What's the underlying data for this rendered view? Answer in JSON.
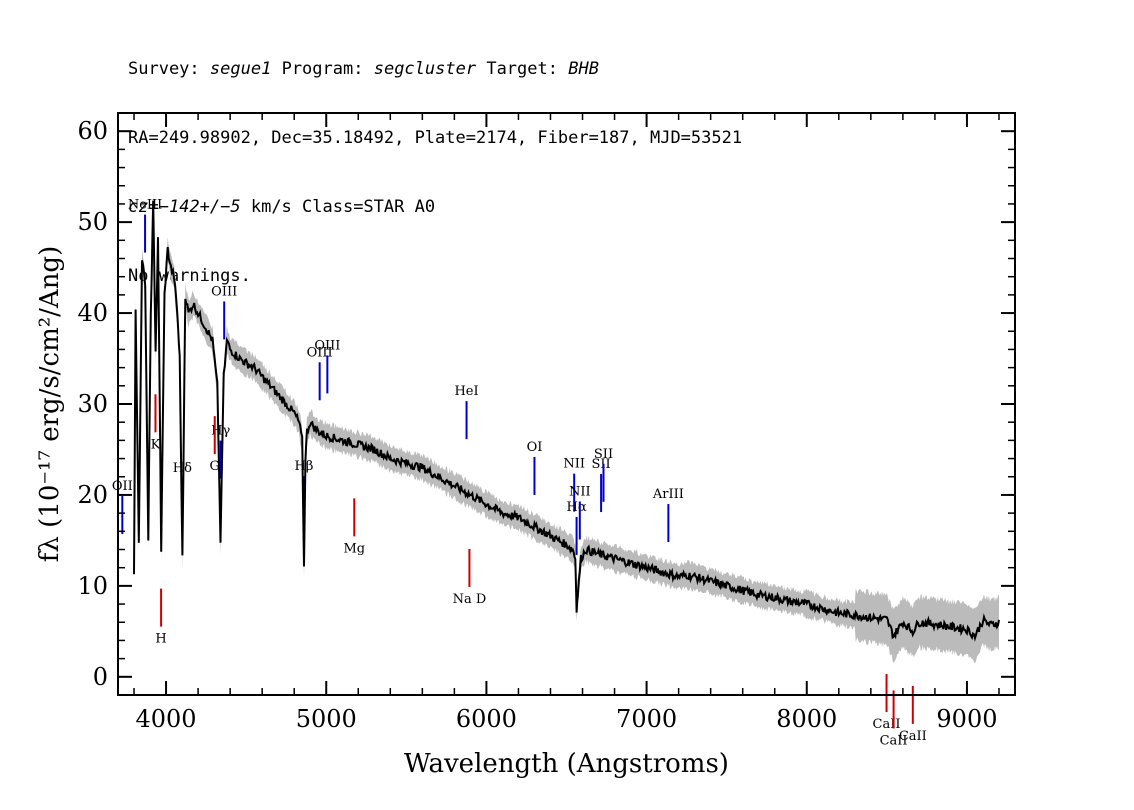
{
  "header": {
    "survey_label": "Survey:",
    "survey": "segue1",
    "program_label": "Program:",
    "program": "segcluster",
    "target_label": "Target:",
    "target": "BHB",
    "line2": "RA=249.98902, Dec=35.18492, Plate=2174, Fiber=187, MJD=53521",
    "cz_label": "cz=",
    "cz_value": "−142+/−5",
    "cz_rest": " km/s Class=STAR A0",
    "line4": "No warnings."
  },
  "chart_data": {
    "type": "line",
    "xlabel": "Wavelength (Angstroms)",
    "ylabel": "fλ (10⁻¹⁷ erg/s/cm²/Ang)",
    "xlim": [
      3700,
      9300
    ],
    "ylim": [
      -2,
      62
    ],
    "xticks": [
      4000,
      5000,
      6000,
      7000,
      8000,
      9000
    ],
    "yticks": [
      0,
      10,
      20,
      30,
      40,
      50,
      60
    ],
    "colors": {
      "flux": "#000000",
      "noise": "#bbbbbb",
      "emission": "#0000cc",
      "absorption": "#cc0000"
    },
    "series": [
      {
        "x": [
          3800,
          3810,
          3830,
          3850,
          3870,
          3889,
          3905,
          3920,
          3935,
          3950,
          3970,
          3990,
          4010,
          4030,
          4050,
          4070,
          4085,
          4102,
          4120,
          4140,
          4170,
          4200,
          4230,
          4260,
          4290,
          4320,
          4340,
          4360,
          4380,
          4400,
          4430,
          4460,
          4500,
          4550,
          4600,
          4650,
          4700,
          4750,
          4800,
          4830,
          4850,
          4861,
          4870,
          4880,
          4900,
          4920,
          4950,
          5000,
          5100,
          5200,
          5300,
          5400,
          5500,
          5600,
          5700,
          5800,
          5900,
          6000,
          6100,
          6200,
          6300,
          6400,
          6500,
          6540,
          6555,
          6563,
          6570,
          6590,
          6620,
          6700,
          6800,
          6900,
          7000,
          7100,
          7200,
          7250,
          7300,
          7400,
          7500,
          7600,
          7700,
          7800,
          7900,
          8000,
          8100,
          8200,
          8300,
          8400,
          8500,
          8542,
          8600,
          8662,
          8700,
          8800,
          8900,
          9000,
          9050,
          9100,
          9150,
          9200
        ],
        "y": [
          11,
          40,
          15,
          46,
          43,
          15,
          40,
          52,
          36,
          48,
          14,
          42,
          47,
          45,
          44,
          40,
          35,
          13,
          42,
          40,
          41,
          40,
          39,
          38,
          37,
          32,
          15,
          33,
          37,
          36,
          35.5,
          35,
          34.5,
          34,
          33,
          32,
          31,
          30,
          29,
          28,
          26,
          12,
          24,
          27,
          28,
          27.5,
          27,
          26.5,
          26,
          25.5,
          25,
          24,
          23.5,
          23,
          22,
          21,
          20,
          19,
          18,
          17.5,
          16.5,
          15.5,
          14.5,
          14,
          13,
          7.5,
          9,
          13,
          14,
          13.5,
          13,
          12.5,
          12,
          11.5,
          11,
          11.2,
          11,
          10.5,
          10,
          9.5,
          9,
          8.7,
          8.3,
          8,
          7.5,
          7,
          6.8,
          6.5,
          6.3,
          4.5,
          6,
          5,
          6,
          5.8,
          5.5,
          5.2,
          4.5,
          6.2,
          5.7,
          6
        ]
      }
    ],
    "lines": [
      {
        "label": "NeIII",
        "wave": 3869,
        "kind": "emission"
      },
      {
        "label": "Hδ",
        "wave": 4102,
        "kind": "emission"
      },
      {
        "label": "Hγ",
        "wave": 4341,
        "kind": "emission"
      },
      {
        "label": "OIII",
        "wave": 4363,
        "kind": "emission"
      },
      {
        "label": "OII",
        "wave": 3727,
        "kind": "emission"
      },
      {
        "label": "Hβ",
        "wave": 4861,
        "kind": "emission"
      },
      {
        "label": "OIII",
        "wave": 4959,
        "kind": "emission"
      },
      {
        "label": "OIII",
        "wave": 5007,
        "kind": "emission"
      },
      {
        "label": "HeI",
        "wave": 5876,
        "kind": "emission"
      },
      {
        "label": "OI",
        "wave": 6300,
        "kind": "emission"
      },
      {
        "label": "NII",
        "wave": 6548,
        "kind": "emission"
      },
      {
        "label": "Hα",
        "wave": 6563,
        "kind": "emission"
      },
      {
        "label": "NII",
        "wave": 6583,
        "kind": "emission"
      },
      {
        "label": "SII",
        "wave": 6716,
        "kind": "emission"
      },
      {
        "label": "SII",
        "wave": 6731,
        "kind": "emission"
      },
      {
        "label": "ArIII",
        "wave": 7136,
        "kind": "emission"
      },
      {
        "label": "K",
        "wave": 3934,
        "kind": "absorption"
      },
      {
        "label": "H",
        "wave": 3969,
        "kind": "absorption"
      },
      {
        "label": "G",
        "wave": 4304,
        "kind": "absorption"
      },
      {
        "label": "Mg",
        "wave": 5175,
        "kind": "absorption"
      },
      {
        "label": "Na D",
        "wave": 5894,
        "kind": "absorption"
      },
      {
        "label": "CaII",
        "wave": 8498,
        "kind": "absorption"
      },
      {
        "label": "CaII",
        "wave": 8542,
        "kind": "absorption"
      },
      {
        "label": "CaII",
        "wave": 8662,
        "kind": "absorption"
      }
    ]
  }
}
